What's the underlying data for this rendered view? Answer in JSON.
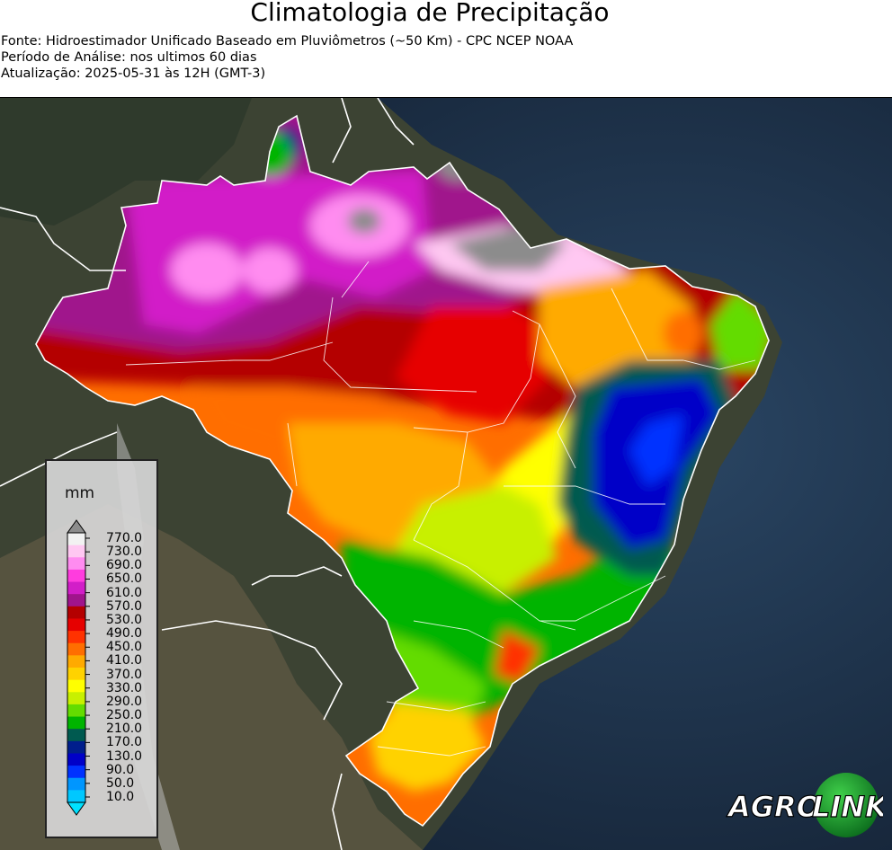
{
  "header": {
    "title": "Climatologia de Precipitação",
    "source": "Fonte: Hidroestimador Unificado Baseado em Pluviômetros (~50 Km) - CPC NCEP NOAA",
    "period": "Período de Análise: nos ultimos 60 dias",
    "updated": "Atualização: 2025-05-31 às 12H (GMT-3)"
  },
  "legend": {
    "unit": "mm",
    "ticks": [
      "770.0",
      "730.0",
      "690.0",
      "650.0",
      "610.0",
      "570.0",
      "530.0",
      "490.0",
      "450.0",
      "410.0",
      "370.0",
      "330.0",
      "290.0",
      "250.0",
      "210.0",
      "170.0",
      "130.0",
      "90.0",
      "50.0",
      "10.0"
    ],
    "colors": [
      "#f2f2f2",
      "#ffc8f2",
      "#ff8cf0",
      "#ff3cde",
      "#d21ec8",
      "#a0148c",
      "#b40000",
      "#e60000",
      "#ff3200",
      "#ff6e00",
      "#ffaa00",
      "#ffd200",
      "#ffff00",
      "#c8f000",
      "#64dc00",
      "#00b400",
      "#005a50",
      "#001e8c",
      "#0000c8",
      "#0032ff",
      "#0096ff",
      "#00c8ff"
    ],
    "over_color": "#8c8c8c",
    "under_color": "#00e1ff"
  },
  "logo": {
    "part1": "AGRO",
    "part2": "LINK"
  },
  "colors": {
    "ocean": "#1c2f47",
    "land": "#3e4334",
    "border": "#ffffff"
  }
}
